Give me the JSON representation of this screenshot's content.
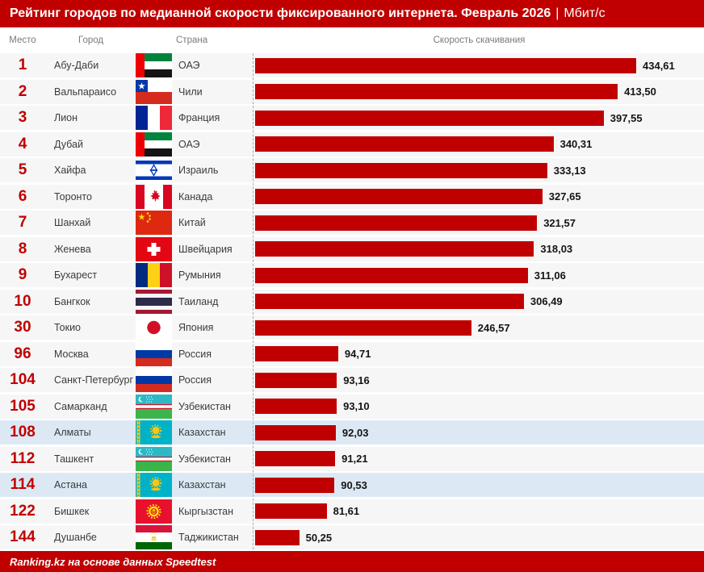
{
  "title": {
    "main": "Рейтинг городов по медианной скорости фиксированного интернета. Февраль 2026",
    "sep": "|",
    "unit": "Мбит/с"
  },
  "columns": {
    "rank": "Место",
    "city": "Город",
    "country": "Страна",
    "speed": "Скорость скачивания"
  },
  "footer": {
    "text": "Ranking.kz на основе данных Speedtest"
  },
  "colors": {
    "accent": "#C00000",
    "bar": "#C00000",
    "row_bg": "#F6F6F6",
    "highlight_row": "#DCE9F5",
    "header_text": "#7A7A7A",
    "dashed_line": "#ABABAB"
  },
  "chart_data": {
    "type": "bar",
    "orientation": "horizontal",
    "title": "Рейтинг городов по медианной скорости фиксированного интернета. Февраль 2026",
    "unit": "Мбит/с",
    "xlabel": "Скорость скачивания",
    "xlim": [
      0,
      434.61
    ],
    "grid": false,
    "source": "Ranking.kz на основе данных Speedtest",
    "categories": [
      "Абу-Даби",
      "Вальпараисо",
      "Лион",
      "Дубай",
      "Хайфа",
      "Торонто",
      "Шанхай",
      "Женева",
      "Бухарест",
      "Бангкок",
      "Токио",
      "Москва",
      "Санкт-Петербург",
      "Самарканд",
      "Алматы",
      "Ташкент",
      "Астана",
      "Бишкек",
      "Душанбе"
    ],
    "values": [
      434.61,
      413.5,
      397.55,
      340.31,
      333.13,
      327.65,
      321.57,
      318.03,
      311.06,
      306.49,
      246.57,
      94.71,
      93.16,
      93.1,
      92.03,
      91.21,
      90.53,
      81.61,
      50.25
    ],
    "rows": [
      {
        "rank": "1",
        "city": "Абу-Даби",
        "country": "ОАЭ",
        "flag": "are",
        "value": 434.61,
        "display": "434,61",
        "highlight": false
      },
      {
        "rank": "2",
        "city": "Вальпараисо",
        "country": "Чили",
        "flag": "chl",
        "value": 413.5,
        "display": "413,50",
        "highlight": false
      },
      {
        "rank": "3",
        "city": "Лион",
        "country": "Франция",
        "flag": "fra",
        "value": 397.55,
        "display": "397,55",
        "highlight": false
      },
      {
        "rank": "4",
        "city": "Дубай",
        "country": "ОАЭ",
        "flag": "are",
        "value": 340.31,
        "display": "340,31",
        "highlight": false
      },
      {
        "rank": "5",
        "city": "Хайфа",
        "country": "Израиль",
        "flag": "isr",
        "value": 333.13,
        "display": "333,13",
        "highlight": false
      },
      {
        "rank": "6",
        "city": "Торонто",
        "country": "Канада",
        "flag": "can",
        "value": 327.65,
        "display": "327,65",
        "highlight": false
      },
      {
        "rank": "7",
        "city": "Шанхай",
        "country": "Китай",
        "flag": "chn",
        "value": 321.57,
        "display": "321,57",
        "highlight": false
      },
      {
        "rank": "8",
        "city": "Женева",
        "country": "Швейцария",
        "flag": "che",
        "value": 318.03,
        "display": "318,03",
        "highlight": false
      },
      {
        "rank": "9",
        "city": "Бухарест",
        "country": "Румыния",
        "flag": "rou",
        "value": 311.06,
        "display": "311,06",
        "highlight": false
      },
      {
        "rank": "10",
        "city": "Бангкок",
        "country": "Таиланд",
        "flag": "tha",
        "value": 306.49,
        "display": "306,49",
        "highlight": false
      },
      {
        "rank": "30",
        "city": "Токио",
        "country": "Япония",
        "flag": "jpn",
        "value": 246.57,
        "display": "246,57",
        "highlight": false
      },
      {
        "rank": "96",
        "city": "Москва",
        "country": "Россия",
        "flag": "rus",
        "value": 94.71,
        "display": "94,71",
        "highlight": false
      },
      {
        "rank": "104",
        "city": "Санкт-Петербург",
        "country": "Россия",
        "flag": "rus",
        "value": 93.16,
        "display": "93,16",
        "highlight": false
      },
      {
        "rank": "105",
        "city": "Самарканд",
        "country": "Узбекистан",
        "flag": "uzb",
        "value": 93.1,
        "display": "93,10",
        "highlight": false
      },
      {
        "rank": "108",
        "city": "Алматы",
        "country": "Казахстан",
        "flag": "kaz",
        "value": 92.03,
        "display": "92,03",
        "highlight": true
      },
      {
        "rank": "112",
        "city": "Ташкент",
        "country": "Узбекистан",
        "flag": "uzb",
        "value": 91.21,
        "display": "91,21",
        "highlight": false
      },
      {
        "rank": "114",
        "city": "Астана",
        "country": "Казахстан",
        "flag": "kaz",
        "value": 90.53,
        "display": "90,53",
        "highlight": true
      },
      {
        "rank": "122",
        "city": "Бишкек",
        "country": "Кыргызстан",
        "flag": "kgz",
        "value": 81.61,
        "display": "81,61",
        "highlight": false
      },
      {
        "rank": "144",
        "city": "Душанбе",
        "country": "Таджикистан",
        "flag": "tjk",
        "value": 50.25,
        "display": "50,25",
        "highlight": false
      }
    ]
  }
}
